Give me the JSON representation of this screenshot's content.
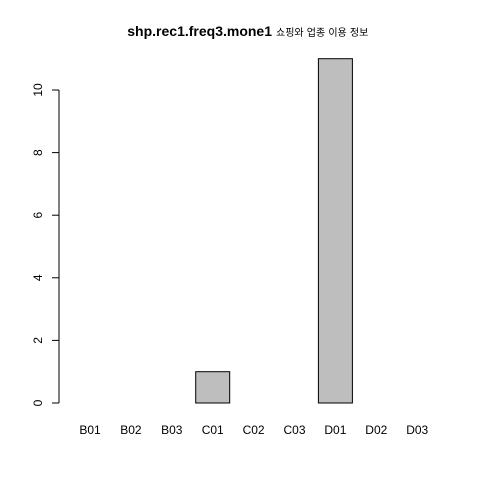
{
  "chart_data": {
    "type": "bar",
    "title": "shp.rec1.freq3.mone1",
    "subtitle": "쇼핑와 업종 이용 정보",
    "categories": [
      "B01",
      "B02",
      "B03",
      "C01",
      "C02",
      "C03",
      "D01",
      "D02",
      "D03"
    ],
    "values": [
      0,
      0,
      0,
      1,
      0,
      0,
      11,
      0,
      0
    ],
    "yticks": [
      0,
      2,
      4,
      6,
      8,
      10
    ],
    "ylim": [
      0,
      11
    ],
    "xlabel": "",
    "ylabel": "",
    "grid": false,
    "colors": {
      "bar_fill": "#bebebe",
      "bar_stroke": "#000000",
      "axis": "#000000"
    }
  }
}
